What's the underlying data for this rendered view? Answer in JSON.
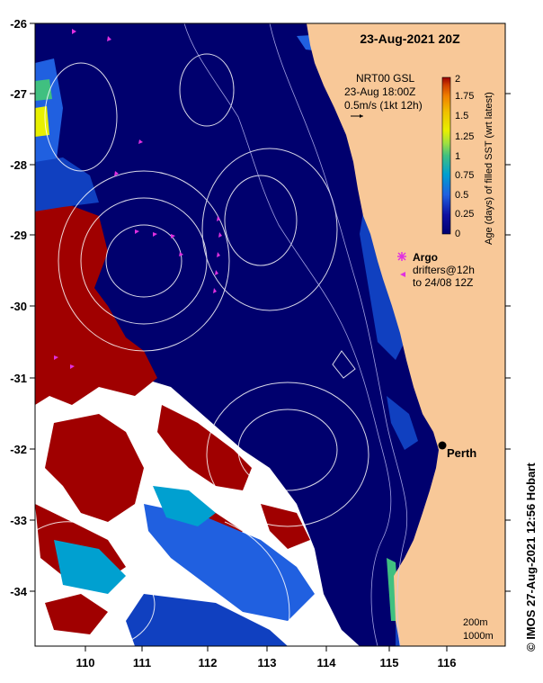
{
  "title": "23-Aug-2021 20Z",
  "product": {
    "line1": "NRT00 GSL",
    "line2": "23-Aug 18:00Z",
    "line3": "0.5m/s (1kt 12h)"
  },
  "colorbar": {
    "label": "Age (days) of filled SST (wrt latest)",
    "ticks": [
      "2",
      "1.75",
      "1.5",
      "1.25",
      "1",
      "0.75",
      "0.5",
      "0.25",
      "0"
    ],
    "colors": [
      "#9a0000",
      "#d04000",
      "#f08000",
      "#f0c000",
      "#e8f000",
      "#a0e040",
      "#40c080",
      "#00a0d0",
      "#2060e0",
      "#1010a0",
      "#000070"
    ]
  },
  "legend": {
    "argo_label": "Argo",
    "drifters_label": "drifters@12h",
    "drifters_sub": "to 24/08 12Z",
    "marker_color": "#e030e0"
  },
  "city": {
    "name": "Perth"
  },
  "scale": {
    "line1": "200m",
    "line2": "1000m"
  },
  "credit": "© IMOS 27-Aug-2021 12:56 Hobart",
  "axes": {
    "lon_ticks": [
      "110",
      "111",
      "112",
      "113",
      "114",
      "115",
      "116"
    ],
    "lat_ticks": [
      "-26",
      "-27",
      "-28",
      "-29",
      "-30",
      "-31",
      "-32",
      "-33",
      "-34"
    ]
  },
  "colors": {
    "ocean": "#00006e",
    "land": "#f8c898",
    "cloud": "#ffffff",
    "old_data": "#a00000",
    "contour": "#ffffff"
  }
}
